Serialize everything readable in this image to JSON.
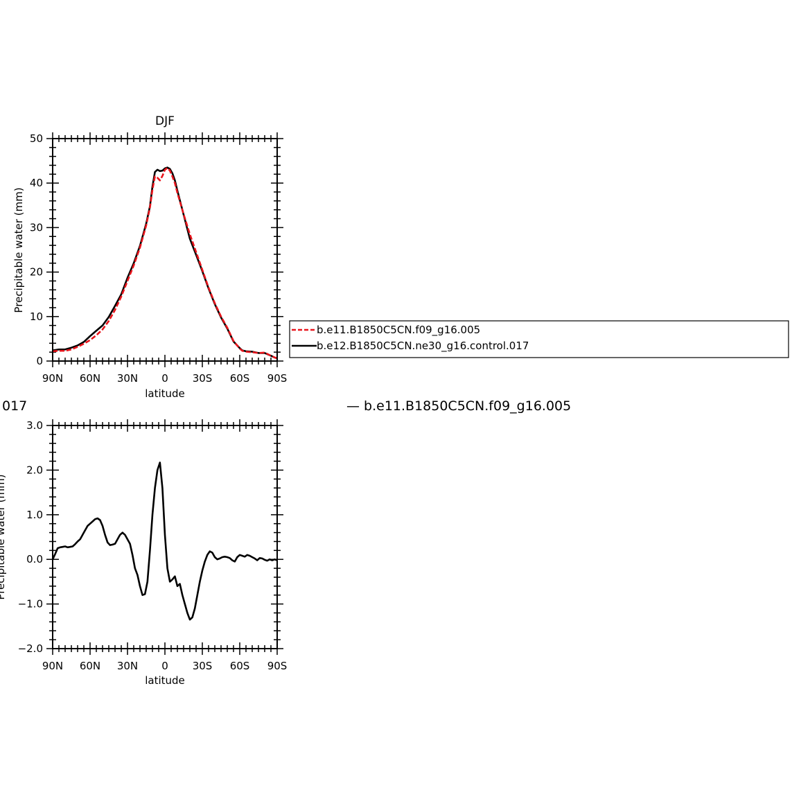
{
  "figure": {
    "partial_label_left": "017",
    "partial_label_right": "— b.e11.B1850C5CN.f09_g16.005"
  },
  "legend": {
    "entries": [
      {
        "label": "b.e11.B1850C5CN.f09_g16.005",
        "color": "#e8141b",
        "style": "dashed"
      },
      {
        "label": "b.e12.B1850C5CN.ne30_g16.control.017",
        "color": "#000000",
        "style": "solid"
      }
    ]
  },
  "chart_data": [
    {
      "type": "line",
      "title": "DJF",
      "xlabel": "latitude",
      "ylabel": "Precipitable water (mm)",
      "x_ticks": [
        "90N",
        "60N",
        "30N",
        "0",
        "30S",
        "60S",
        "90S"
      ],
      "x_tick_values": [
        90,
        60,
        30,
        0,
        -30,
        -60,
        -90
      ],
      "xlim": [
        90,
        -90
      ],
      "ylim": [
        0,
        50
      ],
      "y_ticks": [
        "0",
        "10",
        "20",
        "30",
        "40",
        "50"
      ],
      "y_tick_values": [
        0,
        10,
        20,
        30,
        40,
        50
      ],
      "series": [
        {
          "name": "b.e11.B1850C5CN.f09_g16.005",
          "color": "#e8141b",
          "dash": true,
          "x": [
            90,
            85,
            80,
            75,
            70,
            65,
            60,
            55,
            50,
            45,
            40,
            35,
            30,
            25,
            20,
            15,
            12,
            10,
            8,
            6,
            4,
            2,
            0,
            -2,
            -4,
            -6,
            -8,
            -10,
            -15,
            -20,
            -25,
            -30,
            -35,
            -40,
            -45,
            -50,
            -55,
            -60,
            -62,
            -65,
            -70,
            -75,
            -80,
            -85,
            -88,
            -90
          ],
          "y": [
            2.2,
            2.3,
            2.3,
            2.6,
            3.2,
            3.9,
            4.7,
            5.8,
            7.1,
            9.0,
            11.5,
            14.5,
            18.0,
            21.5,
            25.5,
            30.5,
            34.5,
            38.5,
            41.5,
            41.2,
            40.6,
            41.6,
            43.0,
            43.4,
            42.8,
            41.5,
            40.0,
            37.8,
            33.0,
            28.5,
            24.5,
            20.5,
            16.5,
            13.0,
            10.0,
            7.5,
            4.5,
            2.8,
            2.3,
            2.1,
            2.0,
            1.8,
            1.9,
            1.2,
            0.8,
            0.6
          ]
        },
        {
          "name": "b.e12.B1850C5CN.ne30_g16.control.017",
          "color": "#000000",
          "dash": false,
          "x": [
            90,
            85,
            80,
            75,
            70,
            65,
            60,
            55,
            50,
            45,
            40,
            35,
            30,
            25,
            20,
            15,
            12,
            10,
            8,
            6,
            4,
            2,
            0,
            -2,
            -4,
            -6,
            -8,
            -10,
            -15,
            -20,
            -25,
            -30,
            -35,
            -40,
            -45,
            -50,
            -55,
            -60,
            -62,
            -65,
            -70,
            -75,
            -80,
            -85,
            -88,
            -90
          ],
          "y": [
            2.4,
            2.6,
            2.6,
            3.0,
            3.5,
            4.3,
            5.6,
            6.8,
            8.0,
            9.9,
            12.4,
            15.0,
            18.7,
            22.0,
            25.9,
            30.9,
            34.8,
            39.2,
            42.5,
            43.0,
            42.7,
            42.8,
            43.3,
            43.5,
            43.2,
            42.2,
            40.6,
            38.3,
            32.9,
            27.5,
            23.9,
            20.2,
            16.3,
            12.8,
            9.8,
            7.3,
            4.4,
            2.9,
            2.4,
            2.2,
            2.1,
            1.8,
            1.8,
            1.2,
            0.8,
            0.6
          ]
        }
      ]
    },
    {
      "type": "line",
      "title": "",
      "xlabel": "latitude",
      "ylabel": "Precipitable water (mm)",
      "x_ticks": [
        "90N",
        "60N",
        "30N",
        "0",
        "30S",
        "60S",
        "90S"
      ],
      "x_tick_values": [
        90,
        60,
        30,
        0,
        -30,
        -60,
        -90
      ],
      "xlim": [
        90,
        -90
      ],
      "ylim": [
        -2.0,
        3.0
      ],
      "y_ticks": [
        "−2.0",
        "−1.0",
        "0.0",
        "1.0",
        "2.0",
        "3.0"
      ],
      "y_tick_values": [
        -2,
        -1,
        0,
        1,
        2,
        3
      ],
      "series": [
        {
          "name": "",
          "color": "#000000",
          "dash": false,
          "x": [
            90,
            88,
            86,
            84,
            82,
            80,
            78,
            76,
            74,
            72,
            70,
            68,
            66,
            64,
            62,
            60,
            58,
            56,
            54,
            52,
            50,
            48,
            46,
            44,
            42,
            40,
            38,
            36,
            34,
            32,
            30,
            28,
            26,
            24,
            22,
            20,
            18,
            16,
            14,
            12,
            10,
            8,
            6,
            4,
            2,
            0,
            -2,
            -4,
            -6,
            -8,
            -10,
            -12,
            -14,
            -16,
            -18,
            -20,
            -22,
            -24,
            -26,
            -28,
            -30,
            -32,
            -34,
            -36,
            -38,
            -40,
            -42,
            -44,
            -46,
            -48,
            -50,
            -52,
            -54,
            -56,
            -58,
            -60,
            -62,
            -64,
            -66,
            -68,
            -70,
            -72,
            -74,
            -76,
            -78,
            -80,
            -82,
            -84,
            -86,
            -88,
            -90
          ],
          "y": [
            0.0,
            0.12,
            0.25,
            0.27,
            0.28,
            0.29,
            0.27,
            0.28,
            0.29,
            0.34,
            0.4,
            0.45,
            0.55,
            0.65,
            0.75,
            0.8,
            0.85,
            0.9,
            0.92,
            0.88,
            0.75,
            0.55,
            0.38,
            0.32,
            0.33,
            0.35,
            0.45,
            0.55,
            0.6,
            0.55,
            0.45,
            0.35,
            0.1,
            -0.2,
            -0.35,
            -0.6,
            -0.8,
            -0.78,
            -0.5,
            0.2,
            1.0,
            1.6,
            2.0,
            2.17,
            1.6,
            0.55,
            -0.2,
            -0.5,
            -0.45,
            -0.38,
            -0.6,
            -0.55,
            -0.8,
            -1.0,
            -1.2,
            -1.35,
            -1.3,
            -1.1,
            -0.8,
            -0.5,
            -0.25,
            -0.05,
            0.1,
            0.18,
            0.15,
            0.05,
            0.0,
            0.02,
            0.05,
            0.06,
            0.05,
            0.03,
            -0.02,
            -0.05,
            0.05,
            0.1,
            0.08,
            0.06,
            0.1,
            0.08,
            0.05,
            0.02,
            -0.02,
            0.03,
            0.02,
            -0.01,
            -0.03,
            0.0,
            -0.02,
            0.0,
            -0.02
          ]
        }
      ]
    }
  ]
}
